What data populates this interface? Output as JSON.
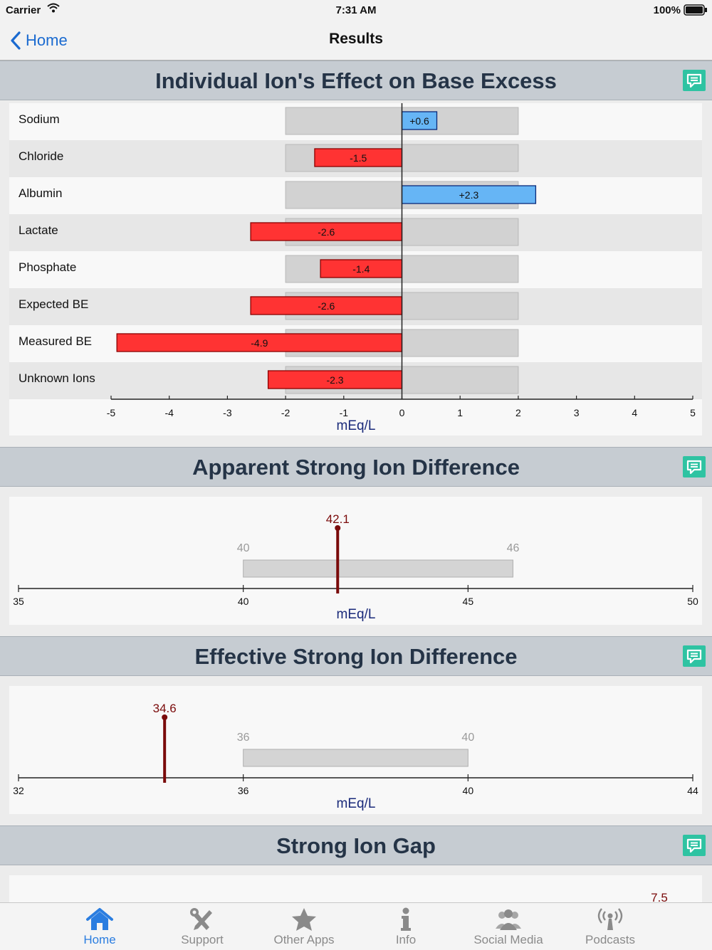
{
  "status_bar": {
    "carrier": "Carrier",
    "time": "7:31 AM",
    "battery": "100%"
  },
  "nav": {
    "back_label": "Home",
    "title": "Results"
  },
  "sections": {
    "ion_effect": {
      "title": "Individual Ion's Effect on Base Excess"
    },
    "apparent_sid": {
      "title": "Apparent Strong Ion Difference"
    },
    "effective_sid": {
      "title": "Effective Strong Ion Difference"
    },
    "strong_ion_gap": {
      "title": "Strong Ion Gap"
    }
  },
  "chart_data": [
    {
      "type": "bar",
      "title": "Individual Ion's Effect on Base Excess",
      "categories": [
        "Sodium",
        "Chloride",
        "Albumin",
        "Lactate",
        "Phosphate",
        "Expected BE",
        "Measured BE",
        "Unknown Ions"
      ],
      "values": [
        0.6,
        -1.5,
        2.3,
        -2.6,
        -1.4,
        -2.6,
        -4.9,
        -2.3
      ],
      "value_labels": [
        "+0.6",
        "-1.5",
        "+2.3",
        "-2.6",
        "-1.4",
        "-2.6",
        "-4.9",
        "-2.3"
      ],
      "reference_range": [
        -2,
        2
      ],
      "xlim": [
        -5,
        5
      ],
      "xticks": [
        -5,
        -4,
        -3,
        -2,
        -1,
        0,
        1,
        2,
        3,
        4,
        5
      ],
      "xlabel": "mEq/L",
      "colors": {
        "positive": "#66b5f5",
        "negative": "#ff3333",
        "range": "#d2d2d2"
      }
    },
    {
      "type": "range",
      "title": "Apparent Strong Ion Difference",
      "value": 42.1,
      "value_label": "42.1",
      "normal_range": [
        40,
        46
      ],
      "range_labels": [
        "40",
        "46"
      ],
      "xlim": [
        35,
        50
      ],
      "xticks": [
        35,
        40,
        45,
        50
      ],
      "xlabel": "mEq/L",
      "marker_color": "#7a0a0a"
    },
    {
      "type": "range",
      "title": "Effective Strong Ion Difference",
      "value": 34.6,
      "value_label": "34.6",
      "normal_range": [
        36,
        40
      ],
      "range_labels": [
        "36",
        "40"
      ],
      "xlim": [
        32,
        44
      ],
      "xticks": [
        32,
        36,
        40,
        44
      ],
      "xlabel": "mEq/L",
      "marker_color": "#7a0a0a"
    },
    {
      "type": "range",
      "title": "Strong Ion Gap",
      "value": 7.5,
      "value_label": "7.5",
      "marker_color": "#7a0a0a"
    }
  ],
  "tabs": [
    {
      "label": "Home",
      "icon": "home-icon",
      "active": true
    },
    {
      "label": "Support",
      "icon": "wrench-icon",
      "active": false
    },
    {
      "label": "Other Apps",
      "icon": "star-icon",
      "active": false
    },
    {
      "label": "Info",
      "icon": "info-icon",
      "active": false
    },
    {
      "label": "Social Media",
      "icon": "people-icon",
      "active": false
    },
    {
      "label": "Podcasts",
      "icon": "podcast-icon",
      "active": false
    }
  ],
  "colors": {
    "accent": "#2a7de0",
    "comment_icon": "#2ec3a2",
    "header_bg": "#c6ccd2",
    "header_text": "#253447"
  }
}
